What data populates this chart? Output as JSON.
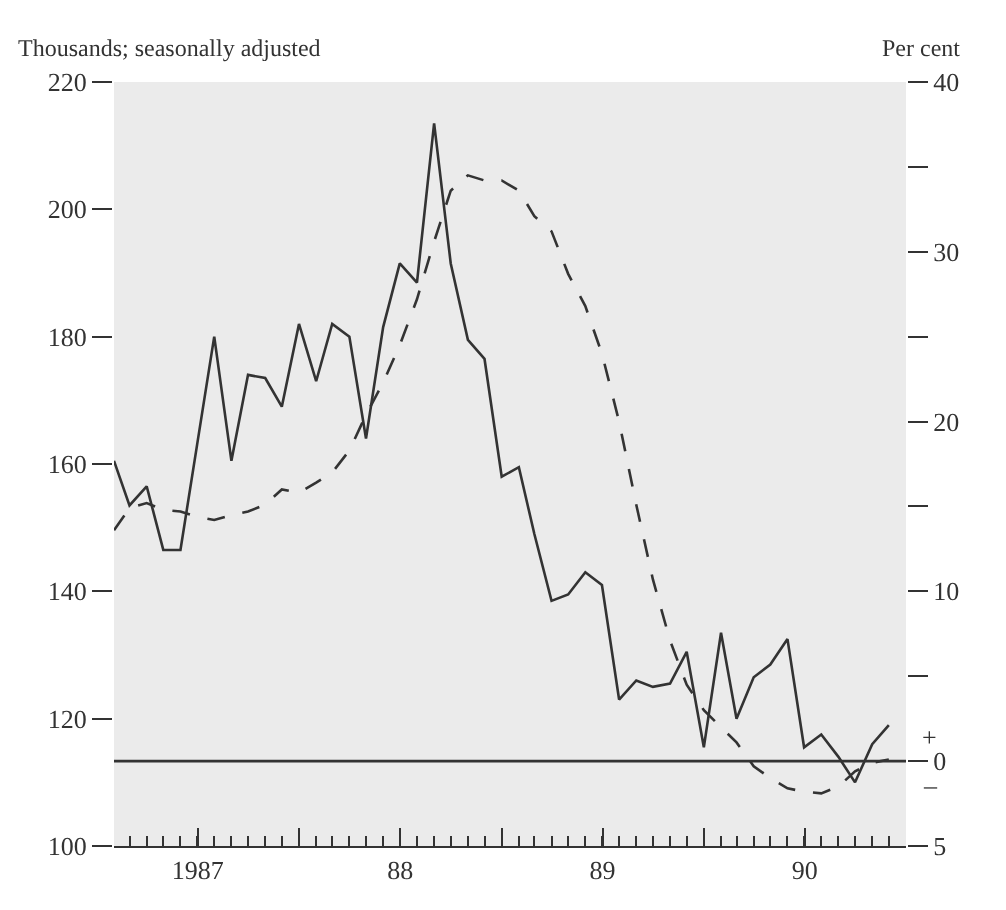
{
  "chart_data": {
    "type": "line",
    "ylabel": "Thousands; seasonally adjusted",
    "y2label": "Per cent",
    "x": [
      "1987-02",
      "1987-03",
      "1987-04",
      "1987-05",
      "1987-06",
      "1987-07",
      "1987-08",
      "1987-09",
      "1987-10",
      "1987-11",
      "1987-12",
      "1988-01",
      "1988-02",
      "1988-03",
      "1988-04",
      "1988-05",
      "1988-06",
      "1988-07",
      "1988-08",
      "1988-09",
      "1988-10",
      "1988-11",
      "1988-12",
      "1989-01",
      "1989-02",
      "1989-03",
      "1989-04",
      "1989-05",
      "1989-06",
      "1989-07",
      "1989-08",
      "1989-09",
      "1989-10",
      "1989-11",
      "1989-12",
      "1990-01",
      "1990-02",
      "1990-03",
      "1990-04",
      "1990-05",
      "1990-06",
      "1990-07",
      "1990-08",
      "1990-09",
      "1990-10",
      "1990-11",
      "1990-12"
    ],
    "series": [
      {
        "color": "#333333",
        "line_style": "solid",
        "values": [
          160.5,
          153.5,
          156.5,
          146.5,
          146.5,
          163,
          180,
          160.5,
          174,
          173.5,
          169,
          182,
          173,
          182,
          180,
          164,
          181.5,
          191.5,
          188.5,
          213.5,
          191.5,
          179.5,
          176.5,
          158,
          159.5,
          149,
          138.5,
          139.5,
          143,
          141,
          123,
          126,
          125,
          125.5,
          130.5,
          115.5,
          133.5,
          120,
          126.5,
          128.5,
          132.5,
          115.5,
          117.5,
          114,
          110,
          116,
          119
        ]
      },
      {
        "color": "#333333",
        "line_style": "dashed",
        "axis": "y2",
        "values": [
          13.6,
          14.9,
          15.2,
          14.8,
          14.7,
          14.4,
          14.2,
          14.5,
          14.7,
          15.1,
          16.0,
          15.8,
          16.4,
          17.0,
          18.3,
          20.4,
          22.3,
          24.5,
          27.2,
          30.6,
          33.6,
          34.5,
          34.2,
          34.2,
          33.6,
          32.1,
          31.2,
          28.7,
          26.8,
          24.0,
          20.0,
          15.1,
          10.7,
          7.1,
          4.5,
          3.0,
          2.0,
          1.1,
          -0.3,
          -1.0,
          -1.6,
          -1.8,
          -1.9,
          -1.5,
          -0.6,
          -0.1,
          0.1
        ]
      }
    ],
    "xlim": [
      "1987-02",
      "1991-01"
    ],
    "xticks": [
      {
        "value": "1987-07-02",
        "label": "1987"
      },
      {
        "value": "1988-01",
        "label": null
      },
      {
        "value": "1988-07-02",
        "label": "88"
      },
      {
        "value": "1989-01",
        "label": null
      },
      {
        "value": "1989-07-02",
        "label": "89"
      },
      {
        "value": "1990-01",
        "label": null
      },
      {
        "value": "1990-07-02",
        "label": "90"
      },
      {
        "value": "1991-01",
        "label": null
      }
    ],
    "ylim": [
      100,
      220
    ],
    "yticks": [
      100,
      120,
      140,
      160,
      180,
      200,
      220
    ],
    "y2lim": [
      -5,
      40
    ],
    "y2ticks": [
      {
        "value": -5,
        "label": "5"
      },
      0,
      {
        "value": 5,
        "label": null
      },
      10,
      {
        "value": 15,
        "label": null
      },
      20,
      {
        "value": 25,
        "label": null
      },
      30,
      {
        "value": 35,
        "label": null
      },
      40
    ],
    "ref_lines": [
      {
        "axis": "y2",
        "value": 0,
        "color": "#333333"
      }
    ],
    "annotations": [
      "+",
      "–"
    ],
    "grid": false
  }
}
